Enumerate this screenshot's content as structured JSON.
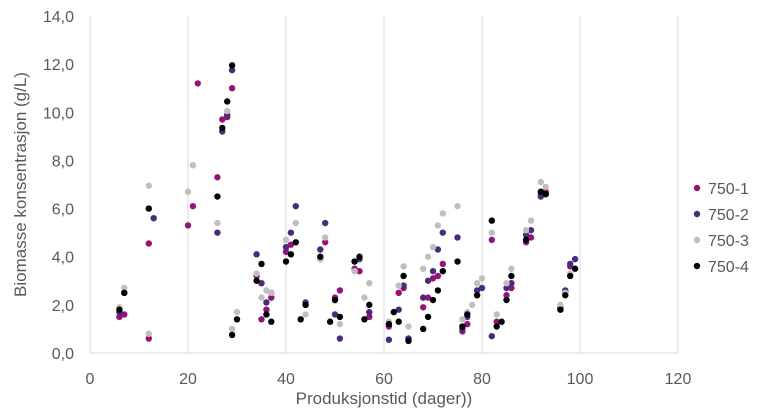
{
  "chart_data": {
    "type": "scatter",
    "title": "",
    "xlabel": "Produksjonstid (dager))",
    "ylabel": "Biomasse konsentrasjon (g/L)",
    "xlim": [
      0,
      120
    ],
    "ylim": [
      0,
      14
    ],
    "x_ticks": [
      "0",
      "20",
      "40",
      "60",
      "80",
      "100",
      "120"
    ],
    "y_ticks": [
      "0,0",
      "2,0",
      "4,0",
      "6,0",
      "8,0",
      "10,0",
      "12,0",
      "14,0"
    ],
    "grid": "vertical",
    "legend_position": "right",
    "series": [
      {
        "name": "750-1",
        "color": "#92137a",
        "points": [
          [
            6,
            1.5
          ],
          [
            7,
            1.6
          ],
          [
            12,
            4.55
          ],
          [
            12,
            0.6
          ],
          [
            20,
            5.3
          ],
          [
            21,
            6.1
          ],
          [
            22,
            11.2
          ],
          [
            26,
            7.3
          ],
          [
            27,
            9.7
          ],
          [
            28,
            9.8
          ],
          [
            29,
            11.0
          ],
          [
            34,
            3.2
          ],
          [
            35,
            1.4
          ],
          [
            36,
            1.8
          ],
          [
            37,
            2.3
          ],
          [
            40,
            4.2
          ],
          [
            41,
            4.5
          ],
          [
            44,
            2.0
          ],
          [
            47,
            3.9
          ],
          [
            48,
            4.6
          ],
          [
            50,
            2.3
          ],
          [
            51,
            2.6
          ],
          [
            54,
            3.5
          ],
          [
            55,
            3.4
          ],
          [
            57,
            1.5
          ],
          [
            61,
            1.1
          ],
          [
            63,
            2.5
          ],
          [
            64,
            2.7
          ],
          [
            65,
            0.6
          ],
          [
            68,
            1.9
          ],
          [
            69,
            2.3
          ],
          [
            70,
            3.1
          ],
          [
            71,
            3.2
          ],
          [
            72,
            3.7
          ],
          [
            76,
            0.9
          ],
          [
            77,
            1.2
          ],
          [
            79,
            2.4
          ],
          [
            82,
            4.7
          ],
          [
            83,
            1.3
          ],
          [
            85,
            2.4
          ],
          [
            86,
            2.7
          ],
          [
            89,
            4.6
          ],
          [
            90,
            4.8
          ],
          [
            92,
            6.6
          ],
          [
            93,
            6.7
          ],
          [
            96,
            1.9
          ],
          [
            97,
            2.5
          ],
          [
            98,
            3.6
          ]
        ]
      },
      {
        "name": "750-2",
        "color": "#4b2a7c",
        "points": [
          [
            6,
            1.7
          ],
          [
            7,
            2.5
          ],
          [
            13,
            5.6
          ],
          [
            26,
            5.0
          ],
          [
            27,
            9.2
          ],
          [
            28,
            9.9
          ],
          [
            29,
            11.75
          ],
          [
            34,
            4.1
          ],
          [
            35,
            2.9
          ],
          [
            36,
            2.1
          ],
          [
            37,
            2.5
          ],
          [
            40,
            4.4
          ],
          [
            41,
            5.0
          ],
          [
            42,
            6.1
          ],
          [
            44,
            2.1
          ],
          [
            47,
            4.3
          ],
          [
            48,
            5.4
          ],
          [
            50,
            1.6
          ],
          [
            51,
            0.6
          ],
          [
            54,
            3.8
          ],
          [
            55,
            3.9
          ],
          [
            57,
            1.7
          ],
          [
            61,
            0.55
          ],
          [
            63,
            1.8
          ],
          [
            64,
            2.8
          ],
          [
            65,
            0.6
          ],
          [
            68,
            2.3
          ],
          [
            69,
            3.0
          ],
          [
            70,
            3.4
          ],
          [
            71,
            4.3
          ],
          [
            72,
            5.0
          ],
          [
            75,
            4.8
          ],
          [
            76,
            1.0
          ],
          [
            77,
            1.5
          ],
          [
            79,
            2.6
          ],
          [
            80,
            2.7
          ],
          [
            82,
            0.7
          ],
          [
            85,
            2.7
          ],
          [
            86,
            2.9
          ],
          [
            89,
            4.9
          ],
          [
            90,
            5.1
          ],
          [
            92,
            6.5
          ],
          [
            93,
            6.6
          ],
          [
            96,
            1.8
          ],
          [
            97,
            2.6
          ],
          [
            98,
            3.7
          ],
          [
            99,
            3.9
          ]
        ]
      },
      {
        "name": "750-3",
        "color": "#bfbfbf",
        "points": [
          [
            6,
            1.9
          ],
          [
            7,
            2.7
          ],
          [
            12,
            6.95
          ],
          [
            12,
            0.8
          ],
          [
            20,
            6.7
          ],
          [
            21,
            7.8
          ],
          [
            26,
            5.4
          ],
          [
            28,
            10.05
          ],
          [
            29,
            1.0
          ],
          [
            30,
            1.7
          ],
          [
            34,
            3.3
          ],
          [
            35,
            2.3
          ],
          [
            36,
            2.6
          ],
          [
            37,
            2.5
          ],
          [
            40,
            4.7
          ],
          [
            42,
            5.4
          ],
          [
            44,
            1.6
          ],
          [
            47,
            3.9
          ],
          [
            48,
            4.8
          ],
          [
            50,
            2.2
          ],
          [
            51,
            1.2
          ],
          [
            54,
            3.4
          ],
          [
            56,
            2.3
          ],
          [
            57,
            2.9
          ],
          [
            61,
            1.3
          ],
          [
            63,
            2.8
          ],
          [
            64,
            3.6
          ],
          [
            65,
            1.1
          ],
          [
            68,
            3.5
          ],
          [
            69,
            4.0
          ],
          [
            70,
            4.4
          ],
          [
            71,
            5.3
          ],
          [
            72,
            5.8
          ],
          [
            75,
            6.1
          ],
          [
            76,
            1.4
          ],
          [
            77,
            1.7
          ],
          [
            78,
            2.0
          ],
          [
            79,
            2.9
          ],
          [
            80,
            3.1
          ],
          [
            82,
            5.0
          ],
          [
            83,
            1.6
          ],
          [
            85,
            2.9
          ],
          [
            86,
            3.5
          ],
          [
            89,
            5.1
          ],
          [
            90,
            5.5
          ],
          [
            92,
            7.1
          ],
          [
            93,
            6.9
          ],
          [
            96,
            2.0
          ],
          [
            97,
            2.5
          ],
          [
            98,
            3.3
          ]
        ]
      },
      {
        "name": "750-4",
        "color": "#000000",
        "points": [
          [
            6,
            1.8
          ],
          [
            7,
            2.5
          ],
          [
            12,
            6.0
          ],
          [
            26,
            6.5
          ],
          [
            27,
            9.35
          ],
          [
            28,
            10.45
          ],
          [
            29,
            11.95
          ],
          [
            29,
            0.75
          ],
          [
            30,
            1.4
          ],
          [
            34,
            3.0
          ],
          [
            35,
            3.7
          ],
          [
            36,
            1.6
          ],
          [
            37,
            1.3
          ],
          [
            40,
            3.8
          ],
          [
            41,
            4.1
          ],
          [
            42,
            4.6
          ],
          [
            43,
            1.4
          ],
          [
            44,
            2.0
          ],
          [
            47,
            4.0
          ],
          [
            49,
            1.3
          ],
          [
            50,
            2.2
          ],
          [
            51,
            1.5
          ],
          [
            54,
            3.8
          ],
          [
            55,
            4.0
          ],
          [
            56,
            1.4
          ],
          [
            57,
            2.0
          ],
          [
            61,
            1.2
          ],
          [
            62,
            1.7
          ],
          [
            63,
            1.3
          ],
          [
            64,
            3.2
          ],
          [
            65,
            0.5
          ],
          [
            68,
            1.0
          ],
          [
            69,
            1.5
          ],
          [
            70,
            2.2
          ],
          [
            71,
            2.6
          ],
          [
            72,
            3.4
          ],
          [
            75,
            3.8
          ],
          [
            76,
            1.1
          ],
          [
            77,
            1.6
          ],
          [
            79,
            2.4
          ],
          [
            82,
            5.5
          ],
          [
            83,
            1.1
          ],
          [
            84,
            1.3
          ],
          [
            85,
            2.2
          ],
          [
            86,
            3.2
          ],
          [
            89,
            4.7
          ],
          [
            92,
            6.7
          ],
          [
            93,
            6.6
          ],
          [
            96,
            1.8
          ],
          [
            97,
            2.4
          ],
          [
            98,
            3.2
          ],
          [
            99,
            3.5
          ]
        ]
      }
    ]
  }
}
